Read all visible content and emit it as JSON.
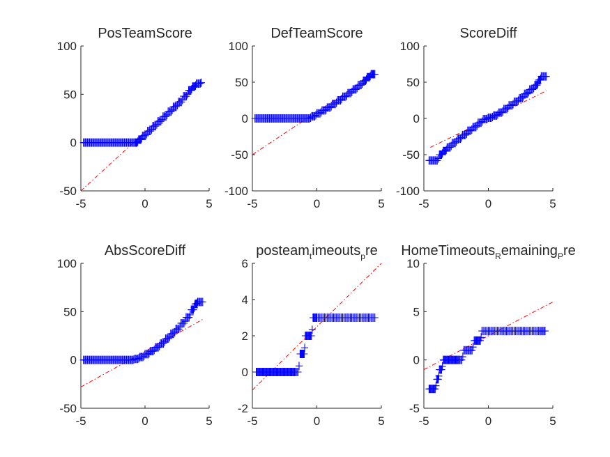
{
  "chart_data": [
    {
      "type": "scatter",
      "title": "PosTeamScore",
      "xlim": [
        -5,
        5
      ],
      "ylim": [
        -50,
        100
      ],
      "xticks": [
        "-5",
        "0",
        "5"
      ],
      "yticks": [
        "-50",
        "0",
        "50",
        "100"
      ],
      "marker": "+",
      "marker_color": "#0000ff",
      "ref_line": {
        "color": "#ff0000",
        "style": "dash-dot",
        "points": [
          [
            -5,
            -50
          ],
          [
            4.2,
            62
          ]
        ]
      },
      "points": [
        [
          -4.8,
          0
        ],
        [
          -4.4,
          0
        ],
        [
          -4,
          0
        ],
        [
          -3.6,
          0
        ],
        [
          -3.2,
          0
        ],
        [
          -2.8,
          0
        ],
        [
          -2.4,
          0
        ],
        [
          -2,
          0
        ],
        [
          -1.6,
          0
        ],
        [
          -1.2,
          0
        ],
        [
          -0.8,
          0
        ],
        [
          -0.5,
          3
        ],
        [
          -0.2,
          7
        ],
        [
          0.2,
          12
        ],
        [
          0.6,
          17
        ],
        [
          1,
          22
        ],
        [
          1.4,
          27
        ],
        [
          1.8,
          32
        ],
        [
          2.2,
          37
        ],
        [
          2.6,
          42
        ],
        [
          3,
          48
        ],
        [
          3.4,
          54
        ],
        [
          3.7,
          58
        ],
        [
          4,
          61
        ],
        [
          4.4,
          62
        ]
      ]
    },
    {
      "type": "scatter",
      "title": "DefTeamScore",
      "xlim": [
        -5,
        5
      ],
      "ylim": [
        -100,
        100
      ],
      "xticks": [
        "-5",
        "0",
        "5"
      ],
      "yticks": [
        "-100",
        "-50",
        "0",
        "50",
        "100"
      ],
      "marker": "+",
      "marker_color": "#0000ff",
      "ref_line": {
        "color": "#ff0000",
        "style": "dash-dot",
        "points": [
          [
            -5,
            -50
          ],
          [
            4.5,
            62
          ]
        ]
      },
      "points": [
        [
          -4.8,
          0
        ],
        [
          -4.4,
          0
        ],
        [
          -4,
          0
        ],
        [
          -3.6,
          0
        ],
        [
          -3.2,
          0
        ],
        [
          -2.8,
          0
        ],
        [
          -2.4,
          0
        ],
        [
          -2,
          0
        ],
        [
          -1.6,
          0
        ],
        [
          -1.2,
          0
        ],
        [
          -0.8,
          0
        ],
        [
          -0.4,
          3
        ],
        [
          0,
          7
        ],
        [
          0.4,
          11
        ],
        [
          0.8,
          15
        ],
        [
          1.2,
          20
        ],
        [
          1.6,
          25
        ],
        [
          2,
          30
        ],
        [
          2.4,
          35
        ],
        [
          2.8,
          40
        ],
        [
          3.2,
          46
        ],
        [
          3.6,
          52
        ],
        [
          3.9,
          57
        ],
        [
          4.2,
          61
        ],
        [
          4.5,
          61
        ]
      ]
    },
    {
      "type": "scatter",
      "title": "ScoreDiff",
      "xlim": [
        -5,
        5
      ],
      "ylim": [
        -100,
        100
      ],
      "xticks": [
        "-5",
        "0",
        "5"
      ],
      "yticks": [
        "-100",
        "-50",
        "0",
        "50",
        "100"
      ],
      "marker": "+",
      "marker_color": "#0000ff",
      "ref_line": {
        "color": "#ff0000",
        "style": "dash-dot",
        "points": [
          [
            -4.5,
            -40
          ],
          [
            4.5,
            38
          ]
        ]
      },
      "points": [
        [
          -4.6,
          -58
        ],
        [
          -4.2,
          -58
        ],
        [
          -3.8,
          -50
        ],
        [
          -3.5,
          -45
        ],
        [
          -3.2,
          -40
        ],
        [
          -2.8,
          -34
        ],
        [
          -2.4,
          -28
        ],
        [
          -2,
          -23
        ],
        [
          -1.6,
          -17
        ],
        [
          -1.2,
          -12
        ],
        [
          -0.8,
          -6
        ],
        [
          -0.4,
          -1
        ],
        [
          0,
          1
        ],
        [
          0.4,
          4
        ],
        [
          0.8,
          8
        ],
        [
          1.2,
          13
        ],
        [
          1.6,
          18
        ],
        [
          2,
          23
        ],
        [
          2.4,
          28
        ],
        [
          2.8,
          34
        ],
        [
          3.2,
          40
        ],
        [
          3.6,
          46
        ],
        [
          3.9,
          53
        ],
        [
          4.1,
          58
        ],
        [
          4.5,
          58
        ]
      ]
    },
    {
      "type": "scatter",
      "title": "AbsScoreDiff",
      "xlim": [
        -5,
        5
      ],
      "ylim": [
        -50,
        100
      ],
      "xticks": [
        "-5",
        "0",
        "5"
      ],
      "yticks": [
        "-50",
        "0",
        "50",
        "100"
      ],
      "marker": "+",
      "marker_color": "#0000ff",
      "ref_line": {
        "color": "#ff0000",
        "style": "dash-dot",
        "points": [
          [
            -5,
            -28
          ],
          [
            4.5,
            42
          ]
        ]
      },
      "points": [
        [
          -4.8,
          0
        ],
        [
          -4.4,
          0
        ],
        [
          -4,
          0
        ],
        [
          -3.6,
          0
        ],
        [
          -3.2,
          0
        ],
        [
          -2.8,
          0
        ],
        [
          -2.4,
          0
        ],
        [
          -2,
          0
        ],
        [
          -1.6,
          0
        ],
        [
          -1.2,
          0
        ],
        [
          -0.8,
          1
        ],
        [
          -0.4,
          3
        ],
        [
          0,
          6
        ],
        [
          0.4,
          9
        ],
        [
          0.8,
          13
        ],
        [
          1.2,
          17
        ],
        [
          1.6,
          22
        ],
        [
          2,
          27
        ],
        [
          2.4,
          32
        ],
        [
          2.8,
          38
        ],
        [
          3.2,
          44
        ],
        [
          3.6,
          52
        ],
        [
          3.9,
          58
        ],
        [
          4.1,
          60
        ],
        [
          4.5,
          60
        ]
      ]
    },
    {
      "type": "scatter",
      "title": "posteam",
      "title_subscripts": [
        [
          "t",
          "imeouts"
        ],
        [
          "p",
          "re"
        ]
      ],
      "xlim": [
        -5,
        5
      ],
      "ylim": [
        -2,
        6
      ],
      "xticks": [
        "-5",
        "0",
        "5"
      ],
      "yticks": [
        "-2",
        "0",
        "2",
        "4",
        "6"
      ],
      "marker": "+",
      "marker_color": "#0000ff",
      "ref_line": {
        "color": "#ff0000",
        "style": "dash-dot",
        "points": [
          [
            -5,
            -1
          ],
          [
            5,
            6
          ]
        ]
      },
      "points": [
        [
          -4.7,
          0
        ],
        [
          -4.4,
          0
        ],
        [
          -4.1,
          0
        ],
        [
          -3.8,
          0
        ],
        [
          -3.5,
          0
        ],
        [
          -3.2,
          0
        ],
        [
          -2.9,
          0
        ],
        [
          -2.6,
          0
        ],
        [
          -2.3,
          0
        ],
        [
          -2,
          0
        ],
        [
          -1.7,
          0
        ],
        [
          -1.3,
          1
        ],
        [
          -1.1,
          1
        ],
        [
          -0.9,
          2
        ],
        [
          -0.6,
          2
        ],
        [
          -0.3,
          3
        ],
        [
          0,
          3
        ],
        [
          0.5,
          3
        ],
        [
          1,
          3
        ],
        [
          1.5,
          3
        ],
        [
          2,
          3
        ],
        [
          2.5,
          3
        ],
        [
          3,
          3
        ],
        [
          3.5,
          3
        ],
        [
          4,
          3
        ],
        [
          4.5,
          3
        ]
      ]
    },
    {
      "type": "scatter",
      "title": "HomeTimeouts",
      "title_subscripts": [
        [
          "R",
          "emaining"
        ],
        [
          "P",
          "re"
        ]
      ],
      "xlim": [
        -5,
        5
      ],
      "ylim": [
        -5,
        10
      ],
      "xticks": [
        "-5",
        "0",
        "5"
      ],
      "yticks": [
        "-5",
        "0",
        "5",
        "10"
      ],
      "marker": "+",
      "marker_color": "#0000ff",
      "ref_line": {
        "color": "#ff0000",
        "style": "dash-dot",
        "points": [
          [
            -5,
            -1
          ],
          [
            5,
            6
          ]
        ]
      },
      "points": [
        [
          -4.6,
          -3
        ],
        [
          -4.3,
          -3
        ],
        [
          -4,
          -2
        ],
        [
          -3.8,
          -1
        ],
        [
          -3.5,
          0
        ],
        [
          -3.2,
          0
        ],
        [
          -2.9,
          0
        ],
        [
          -2.6,
          0
        ],
        [
          -2.3,
          0
        ],
        [
          -1.9,
          1
        ],
        [
          -1.5,
          1
        ],
        [
          -1.1,
          2
        ],
        [
          -0.8,
          2
        ],
        [
          -0.5,
          3
        ],
        [
          0,
          3
        ],
        [
          0.5,
          3
        ],
        [
          1,
          3
        ],
        [
          1.5,
          3
        ],
        [
          2,
          3
        ],
        [
          2.5,
          3
        ],
        [
          3,
          3
        ],
        [
          3.5,
          3
        ],
        [
          4,
          3
        ],
        [
          4.4,
          3
        ]
      ]
    }
  ]
}
